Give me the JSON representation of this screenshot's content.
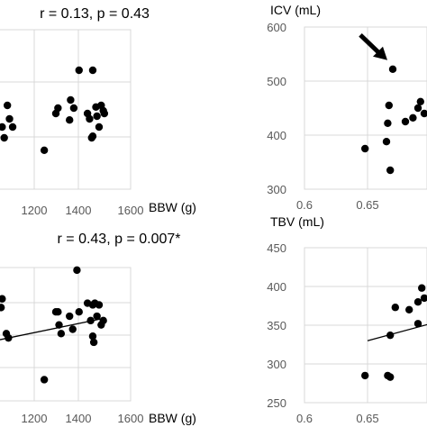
{
  "chart_data": [
    {
      "panel": "top-left",
      "type": "scatter",
      "title": "r = 0.13, p = 0.43",
      "xlabel": "BBW (g)",
      "ylabel": "",
      "x_tick_labels": [
        "1200",
        "1400",
        "1600"
      ],
      "xlim": [
        1000,
        1600
      ],
      "ylim": [
        300,
        600
      ],
      "grid": true,
      "points": [
        {
          "x": 1010,
          "y": 415
        },
        {
          "x": 1020,
          "y": 395
        },
        {
          "x": 1035,
          "y": 455
        },
        {
          "x": 1045,
          "y": 430
        },
        {
          "x": 1060,
          "y": 415
        },
        {
          "x": 1210,
          "y": 372
        },
        {
          "x": 1265,
          "y": 440
        },
        {
          "x": 1275,
          "y": 450
        },
        {
          "x": 1330,
          "y": 428
        },
        {
          "x": 1335,
          "y": 465
        },
        {
          "x": 1350,
          "y": 450
        },
        {
          "x": 1375,
          "y": 520
        },
        {
          "x": 1415,
          "y": 440
        },
        {
          "x": 1425,
          "y": 430
        },
        {
          "x": 1435,
          "y": 395
        },
        {
          "x": 1440,
          "y": 520
        },
        {
          "x": 1440,
          "y": 398
        },
        {
          "x": 1455,
          "y": 452
        },
        {
          "x": 1460,
          "y": 435
        },
        {
          "x": 1470,
          "y": 415
        },
        {
          "x": 1480,
          "y": 455
        },
        {
          "x": 1490,
          "y": 445
        },
        {
          "x": 1495,
          "y": 440
        }
      ]
    },
    {
      "panel": "top-right",
      "type": "scatter",
      "title": "",
      "ylabel": "ICV (mL)",
      "xlabel": "",
      "x_tick_labels": [
        "0.6",
        "0.65"
      ],
      "y_tick_labels": [
        "600",
        "500",
        "400",
        "300"
      ],
      "xlim": [
        0.6,
        0.7
      ],
      "ylim": [
        300,
        600
      ],
      "grid": true,
      "annotation": "arrow pointing to the highest point",
      "points": [
        {
          "x": 0.648,
          "y": 375
        },
        {
          "x": 0.665,
          "y": 388
        },
        {
          "x": 0.666,
          "y": 422
        },
        {
          "x": 0.667,
          "y": 455
        },
        {
          "x": 0.668,
          "y": 335
        },
        {
          "x": 0.67,
          "y": 522
        },
        {
          "x": 0.68,
          "y": 425
        },
        {
          "x": 0.686,
          "y": 432
        },
        {
          "x": 0.69,
          "y": 450
        },
        {
          "x": 0.692,
          "y": 462
        },
        {
          "x": 0.695,
          "y": 440
        }
      ]
    },
    {
      "panel": "bottom-left",
      "type": "scatter",
      "title": "r = 0.43, p = 0.007*",
      "xlabel": "BBW (g)",
      "ylabel": "",
      "x_tick_labels": [
        "1200",
        "1400",
        "1600"
      ],
      "xlim": [
        1000,
        1600
      ],
      "ylim": [
        250,
        450
      ],
      "grid": true,
      "trendline": {
        "x": [
          1000,
          1500
        ],
        "y": [
          338,
          363
        ]
      },
      "points": [
        {
          "x": 1005,
          "y": 375
        },
        {
          "x": 1010,
          "y": 385
        },
        {
          "x": 1030,
          "y": 345
        },
        {
          "x": 1040,
          "y": 340
        },
        {
          "x": 1210,
          "y": 292
        },
        {
          "x": 1265,
          "y": 370
        },
        {
          "x": 1275,
          "y": 370
        },
        {
          "x": 1280,
          "y": 355
        },
        {
          "x": 1290,
          "y": 345
        },
        {
          "x": 1330,
          "y": 365
        },
        {
          "x": 1345,
          "y": 350
        },
        {
          "x": 1365,
          "y": 418
        },
        {
          "x": 1375,
          "y": 370
        },
        {
          "x": 1415,
          "y": 380
        },
        {
          "x": 1430,
          "y": 360
        },
        {
          "x": 1440,
          "y": 378
        },
        {
          "x": 1440,
          "y": 342
        },
        {
          "x": 1445,
          "y": 335
        },
        {
          "x": 1450,
          "y": 380
        },
        {
          "x": 1460,
          "y": 365
        },
        {
          "x": 1470,
          "y": 378
        },
        {
          "x": 1480,
          "y": 355
        },
        {
          "x": 1490,
          "y": 360
        }
      ]
    },
    {
      "panel": "bottom-right",
      "type": "scatter",
      "title": "",
      "ylabel": "TBV (mL)",
      "xlabel": "",
      "x_tick_labels": [
        "0.6",
        "0.65"
      ],
      "y_tick_labels": [
        "450",
        "400",
        "350",
        "300",
        "250"
      ],
      "xlim": [
        0.6,
        0.7
      ],
      "ylim": [
        250,
        450
      ],
      "grid": true,
      "trendline": {
        "x": [
          0.65,
          0.7
        ],
        "y": [
          330,
          352
        ]
      },
      "points": [
        {
          "x": 0.648,
          "y": 285
        },
        {
          "x": 0.666,
          "y": 285
        },
        {
          "x": 0.668,
          "y": 283
        },
        {
          "x": 0.668,
          "y": 337
        },
        {
          "x": 0.672,
          "y": 373
        },
        {
          "x": 0.683,
          "y": 370
        },
        {
          "x": 0.69,
          "y": 352
        },
        {
          "x": 0.69,
          "y": 380
        },
        {
          "x": 0.693,
          "y": 398
        },
        {
          "x": 0.695,
          "y": 385
        }
      ]
    }
  ]
}
